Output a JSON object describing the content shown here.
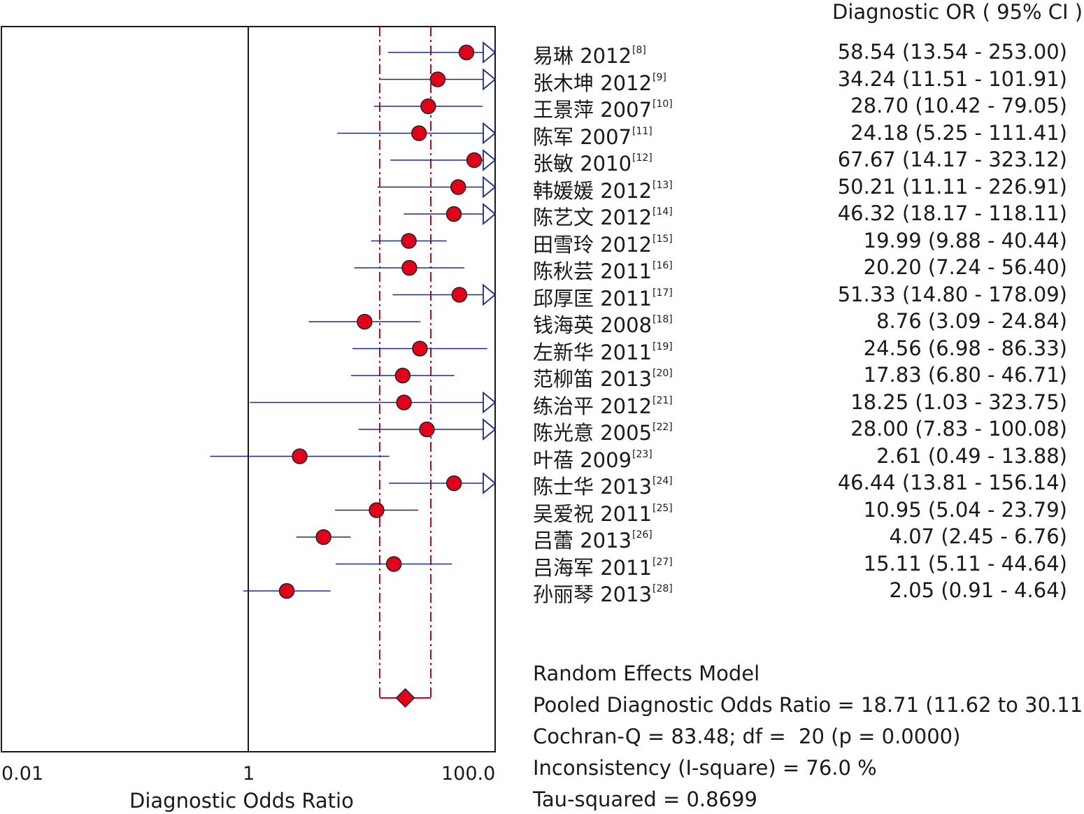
{
  "header": {
    "column_title": "Diagnostic OR ( 95% CI )"
  },
  "colors": {
    "point_fill": "#e3001b",
    "ci_line": "#1b2a8f",
    "pooled_band": "#d0021b",
    "frame": "#1a1a1a"
  },
  "chart_data": {
    "type": "forest",
    "xlabel": "Diagnostic Odds Ratio",
    "x_scale": "log",
    "xlim": [
      0.01,
      100.0
    ],
    "x_ticks": [
      "0.01",
      "1",
      "100.0"
    ],
    "reference_line": 1,
    "studies": [
      {
        "name": "易琳 2012",
        "ref": "[8]",
        "or": 58.54,
        "lo": 13.54,
        "hi": 253.0,
        "label": "58.54 (13.54 - 253.00)"
      },
      {
        "name": "张木坤 2012",
        "ref": "[9]",
        "or": 34.24,
        "lo": 11.51,
        "hi": 101.91,
        "label": "34.24 (11.51 - 101.91)"
      },
      {
        "name": "王景萍 2007",
        "ref": "[10]",
        "or": 28.7,
        "lo": 10.42,
        "hi": 79.05,
        "label": "28.70 (10.42 - 79.05)"
      },
      {
        "name": "陈军 2007",
        "ref": "[11]",
        "or": 24.18,
        "lo": 5.25,
        "hi": 111.41,
        "label": "24.18 (5.25 - 111.41)"
      },
      {
        "name": "张敏 2010",
        "ref": "[12]",
        "or": 67.67,
        "lo": 14.17,
        "hi": 323.12,
        "label": "67.67 (14.17 - 323.12)"
      },
      {
        "name": "韩媛媛 2012",
        "ref": "[13]",
        "or": 50.21,
        "lo": 11.11,
        "hi": 226.91,
        "label": "50.21 (11.11 - 226.91)"
      },
      {
        "name": "陈艺文 2012",
        "ref": "[14]",
        "or": 46.32,
        "lo": 18.17,
        "hi": 118.11,
        "label": "46.32 (18.17 - 118.11)"
      },
      {
        "name": "田雪玲 2012",
        "ref": "[15]",
        "or": 19.99,
        "lo": 9.88,
        "hi": 40.44,
        "label": "19.99 (9.88 - 40.44)"
      },
      {
        "name": "陈秋芸 2011",
        "ref": "[16]",
        "or": 20.2,
        "lo": 7.24,
        "hi": 56.4,
        "label": "20.20 (7.24 - 56.40)"
      },
      {
        "name": "邱厚匡 2011",
        "ref": "[17]",
        "or": 51.33,
        "lo": 14.8,
        "hi": 178.09,
        "label": "51.33 (14.80 - 178.09)"
      },
      {
        "name": "钱海英 2008",
        "ref": "[18]",
        "or": 8.76,
        "lo": 3.09,
        "hi": 24.84,
        "label": "8.76 (3.09 - 24.84)"
      },
      {
        "name": "左新华 2011",
        "ref": "[19]",
        "or": 24.56,
        "lo": 6.98,
        "hi": 86.33,
        "label": "24.56 (6.98 - 86.33)"
      },
      {
        "name": "范柳笛 2013",
        "ref": "[20]",
        "or": 17.83,
        "lo": 6.8,
        "hi": 46.71,
        "label": "17.83 (6.80 - 46.71)"
      },
      {
        "name": "练治平 2012",
        "ref": "[21]",
        "or": 18.25,
        "lo": 1.03,
        "hi": 323.75,
        "label": "18.25 (1.03 - 323.75)"
      },
      {
        "name": "陈光意 2005",
        "ref": "[22]",
        "or": 28.0,
        "lo": 7.83,
        "hi": 100.08,
        "label": "28.00 (7.83 - 100.08)"
      },
      {
        "name": "叶蓓 2009",
        "ref": "[23]",
        "or": 2.61,
        "lo": 0.49,
        "hi": 13.88,
        "label": "2.61 (0.49 - 13.88)"
      },
      {
        "name": "陈士华 2013",
        "ref": "[24]",
        "or": 46.44,
        "lo": 13.81,
        "hi": 156.14,
        "label": "46.44 (13.81 - 156.14)"
      },
      {
        "name": "吴爱祝 2011",
        "ref": "[25]",
        "or": 10.95,
        "lo": 5.04,
        "hi": 23.79,
        "label": "10.95 (5.04 - 23.79)"
      },
      {
        "name": "吕蕾 2013",
        "ref": "[26]",
        "or": 4.07,
        "lo": 2.45,
        "hi": 6.76,
        "label": "4.07 (2.45 - 6.76)"
      },
      {
        "name": "吕海军 2011",
        "ref": "[27]",
        "or": 15.11,
        "lo": 5.11,
        "hi": 44.64,
        "label": "15.11 (5.11 - 44.64)"
      },
      {
        "name": "孙丽琴 2013",
        "ref": "[28]",
        "or": 2.05,
        "lo": 0.91,
        "hi": 4.64,
        "label": "2.05 (0.91 - 4.64)"
      }
    ],
    "pooled": {
      "or": 18.71,
      "lo": 11.62,
      "hi": 30.11
    }
  },
  "summary": {
    "model": "Random Effects Model",
    "pooled": "Pooled Diagnostic Odds Ratio = 18.71 (11.62 to 30.11)",
    "cochran": "Cochran-Q = 83.48; df =  20 (p = 0.0000)",
    "inconsistency": "Inconsistency (I-square) = 76.0 %",
    "tau": "Tau-squared = 0.8699"
  }
}
